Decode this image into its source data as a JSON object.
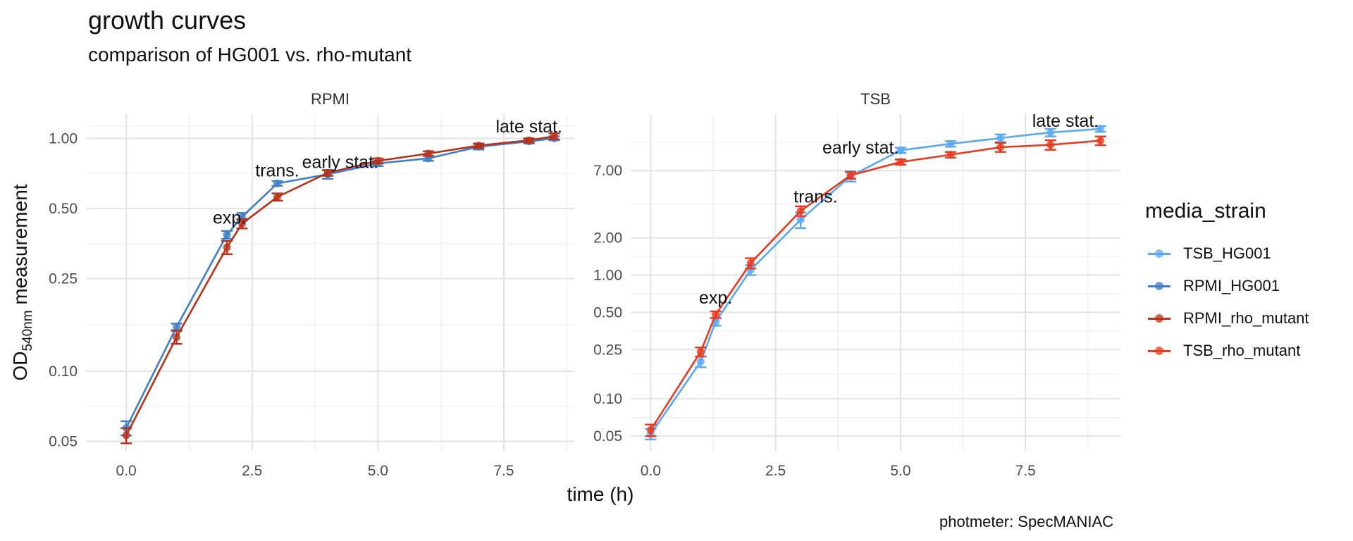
{
  "chart_data": {
    "type": "line",
    "title": "growth curves",
    "subtitle": "comparison of HG001 vs. rho-mutant",
    "xlabel": "time (h)",
    "ylabel": "OD540nm measurement",
    "ylabel_main": "OD",
    "ylabel_sub": "540nm",
    "ylabel_rest": " measurement",
    "caption": "photmeter: SpecMANIAC",
    "y_scale": "log",
    "grid": true,
    "legend": {
      "title": "media_strain",
      "position": "right"
    },
    "panels": [
      {
        "name": "RPMI",
        "xlim": [
          -0.8,
          8.9
        ],
        "ylim": [
          0.0455,
          1.27
        ],
        "x_ticks": [
          0,
          2.5,
          5,
          7.5
        ],
        "x_tick_labels": [
          "0.0",
          "2.5",
          "5.0",
          "7.5"
        ],
        "y_ticks": [
          0.05,
          0.1,
          0.25,
          0.5,
          1.0
        ],
        "y_tick_labels": [
          "0.05",
          "0.10",
          "0.25",
          "0.50",
          "1.00"
        ],
        "series": [
          {
            "name": "RPMI_HG001",
            "color": "#3f7fc6",
            "x": [
              0,
              1,
              2,
              2.3,
              3,
              4,
              5,
              6,
              7,
              8,
              8.5
            ],
            "y": [
              0.057,
              0.155,
              0.385,
              0.46,
              0.64,
              0.7,
              0.78,
              0.82,
              0.92,
              0.97,
              1.0
            ],
            "err": [
              0.004,
              0.005,
              0.015,
              0.018,
              0.015,
              0.03,
              0.02,
              0.02,
              0.025,
              0.02,
              0.02
            ]
          },
          {
            "name": "RPMI_rho_mutant",
            "color": "#b8321a",
            "x": [
              0,
              1,
              2,
              2.3,
              3,
              4,
              5,
              6,
              7,
              8,
              8.5
            ],
            "y": [
              0.053,
              0.14,
              0.34,
              0.43,
              0.56,
              0.71,
              0.8,
              0.86,
              0.93,
              0.98,
              1.02
            ],
            "err": [
              0.004,
              0.009,
              0.022,
              0.02,
              0.02,
              0.02,
              0.02,
              0.02,
              0.02,
              0.02,
              0.03
            ]
          }
        ],
        "annotations": [
          {
            "text": "exp.",
            "x": 2.05,
            "y": 0.43
          },
          {
            "text": "trans.",
            "x": 3.0,
            "y": 0.685
          },
          {
            "text": "early stat.",
            "x": 4.25,
            "y": 0.745
          },
          {
            "text": "late stat.",
            "x": 8.0,
            "y": 1.06
          }
        ]
      },
      {
        "name": "TSB",
        "xlim": [
          -0.4,
          9.4
        ],
        "ylim": [
          0.038,
          20
        ],
        "x_ticks": [
          0,
          2.5,
          5,
          7.5
        ],
        "x_tick_labels": [
          "0.0",
          "2.5",
          "5.0",
          "7.5"
        ],
        "y_ticks": [
          0.05,
          0.1,
          0.25,
          0.5,
          1.0,
          2.0,
          7.0
        ],
        "y_tick_labels": [
          "0.05",
          "0.10",
          "0.25",
          "0.50",
          "1.00",
          "2.00",
          "7.00"
        ],
        "series": [
          {
            "name": "TSB_HG001",
            "color": "#5aa8f0",
            "x": [
              0,
              1,
              1.3,
              2,
              3,
              4,
              5,
              6,
              7,
              8,
              9
            ],
            "y": [
              0.052,
              0.2,
              0.42,
              1.1,
              2.8,
              6.3,
              10.2,
              11.5,
              12.8,
              14.2,
              15.2
            ],
            "err": [
              0.005,
              0.02,
              0.03,
              0.1,
              0.4,
              0.6,
              0.5,
              0.6,
              0.9,
              1.0,
              0.8
            ]
          },
          {
            "name": "TSB_rho_mutant",
            "color": "#e8391e",
            "x": [
              0,
              1,
              1.3,
              2,
              3,
              4,
              5,
              6,
              7,
              8,
              9
            ],
            "y": [
              0.056,
              0.24,
              0.48,
              1.25,
              3.3,
              6.4,
              8.2,
              9.4,
              10.8,
              11.3,
              12.2
            ],
            "err": [
              0.006,
              0.02,
              0.03,
              0.12,
              0.3,
              0.4,
              0.4,
              0.5,
              0.9,
              1.0,
              1.0
            ]
          }
        ],
        "annotations": [
          {
            "text": "exp.",
            "x": 1.3,
            "y": 0.59
          },
          {
            "text": "trans.",
            "x": 3.3,
            "y": 3.85
          },
          {
            "text": "early stat.",
            "x": 4.2,
            "y": 9.6
          },
          {
            "text": "late stat.",
            "x": 8.3,
            "y": 15.8
          }
        ]
      }
    ]
  },
  "legend_items": [
    {
      "name": "TSB_HG001",
      "color": "#5aa8f0"
    },
    {
      "name": "RPMI_HG001",
      "color": "#3f7fc6"
    },
    {
      "name": "RPMI_rho_mutant",
      "color": "#b8321a"
    },
    {
      "name": "TSB_rho_mutant",
      "color": "#e8391e"
    }
  ]
}
